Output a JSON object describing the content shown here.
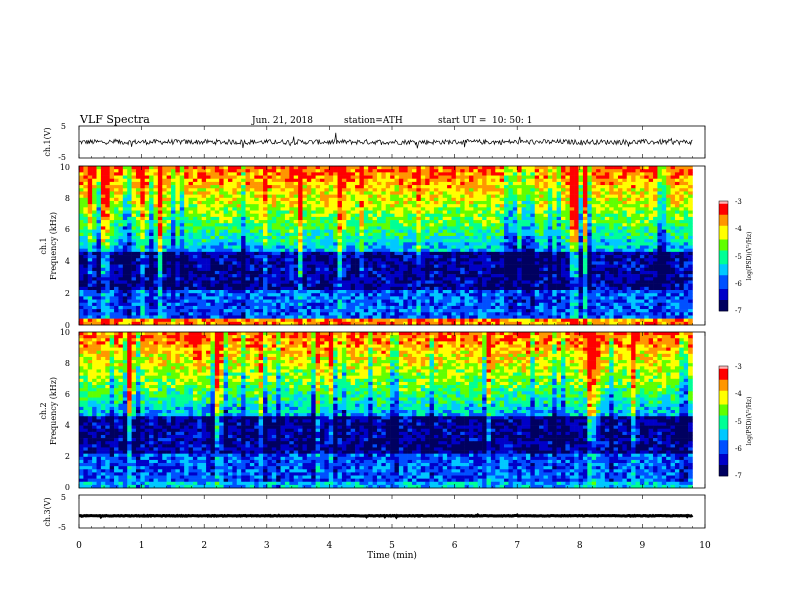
{
  "header": {
    "title": "VLF  Spectra",
    "date": "Jun. 21, 2018",
    "station": "station=ATH",
    "start_label": "start  UT  =",
    "start_time": "10: 50: 1"
  },
  "colors": {
    "waveform": "#000000",
    "colormap": [
      "#000060",
      "#0000c8",
      "#0050ff",
      "#00c8ff",
      "#00ff96",
      "#60ff00",
      "#ffff00",
      "#ff9600",
      "#ff0000",
      "#ffb4b4",
      "#ffffff"
    ]
  },
  "chart_data": [
    {
      "type": "line",
      "panel": "ch1-waveform",
      "ylabel": "ch.1(V)",
      "ylim": [
        -5,
        5
      ],
      "y_ticks": [
        "5",
        "-5"
      ],
      "xlim": [
        0,
        10
      ],
      "description_values": {
        "mean": 0,
        "amplitude": 0.8
      }
    },
    {
      "type": "heatmap",
      "panel": "ch1-spectrogram",
      "ylabel": "ch.1\nFrequency  (kHz)",
      "ylabel_line1": "ch.1",
      "ylabel_line2": "Frequency  (kHz)",
      "ylim": [
        0,
        10
      ],
      "y_ticks": [
        "0",
        "2",
        "4",
        "6",
        "8",
        "10"
      ],
      "xlim": [
        0,
        10
      ],
      "colorbar": {
        "label": "log(PSD)(V²/Hz)",
        "range": [
          -7,
          -3
        ],
        "ticks": [
          "-3",
          "-4",
          "-5",
          "-6",
          "-7"
        ]
      }
    },
    {
      "type": "heatmap",
      "panel": "ch2-spectrogram",
      "ylabel_line1": "ch.2",
      "ylabel_line2": "Frequency  (kHz)",
      "ylim": [
        0,
        10
      ],
      "y_ticks": [
        "0",
        "2",
        "4",
        "6",
        "8",
        "10"
      ],
      "xlim": [
        0,
        10
      ],
      "colorbar": {
        "label": "log(PSD)(V²/Hz)",
        "range": [
          -7,
          -3
        ],
        "ticks": [
          "-3",
          "-4",
          "-5",
          "-6",
          "-7"
        ]
      }
    },
    {
      "type": "line",
      "panel": "ch3-waveform",
      "ylabel": "ch.3(V)",
      "ylim": [
        -5,
        5
      ],
      "y_ticks": [
        "5",
        "-5"
      ],
      "xlim": [
        0,
        10
      ],
      "description_values": {
        "mean": -1.3,
        "amplitude": 0.1
      }
    }
  ],
  "x_axis": {
    "label": "Time  (min)",
    "ticks": [
      "0",
      "1",
      "2",
      "3",
      "4",
      "5",
      "6",
      "7",
      "8",
      "9",
      "10"
    ],
    "data_end_min": 9.8
  }
}
